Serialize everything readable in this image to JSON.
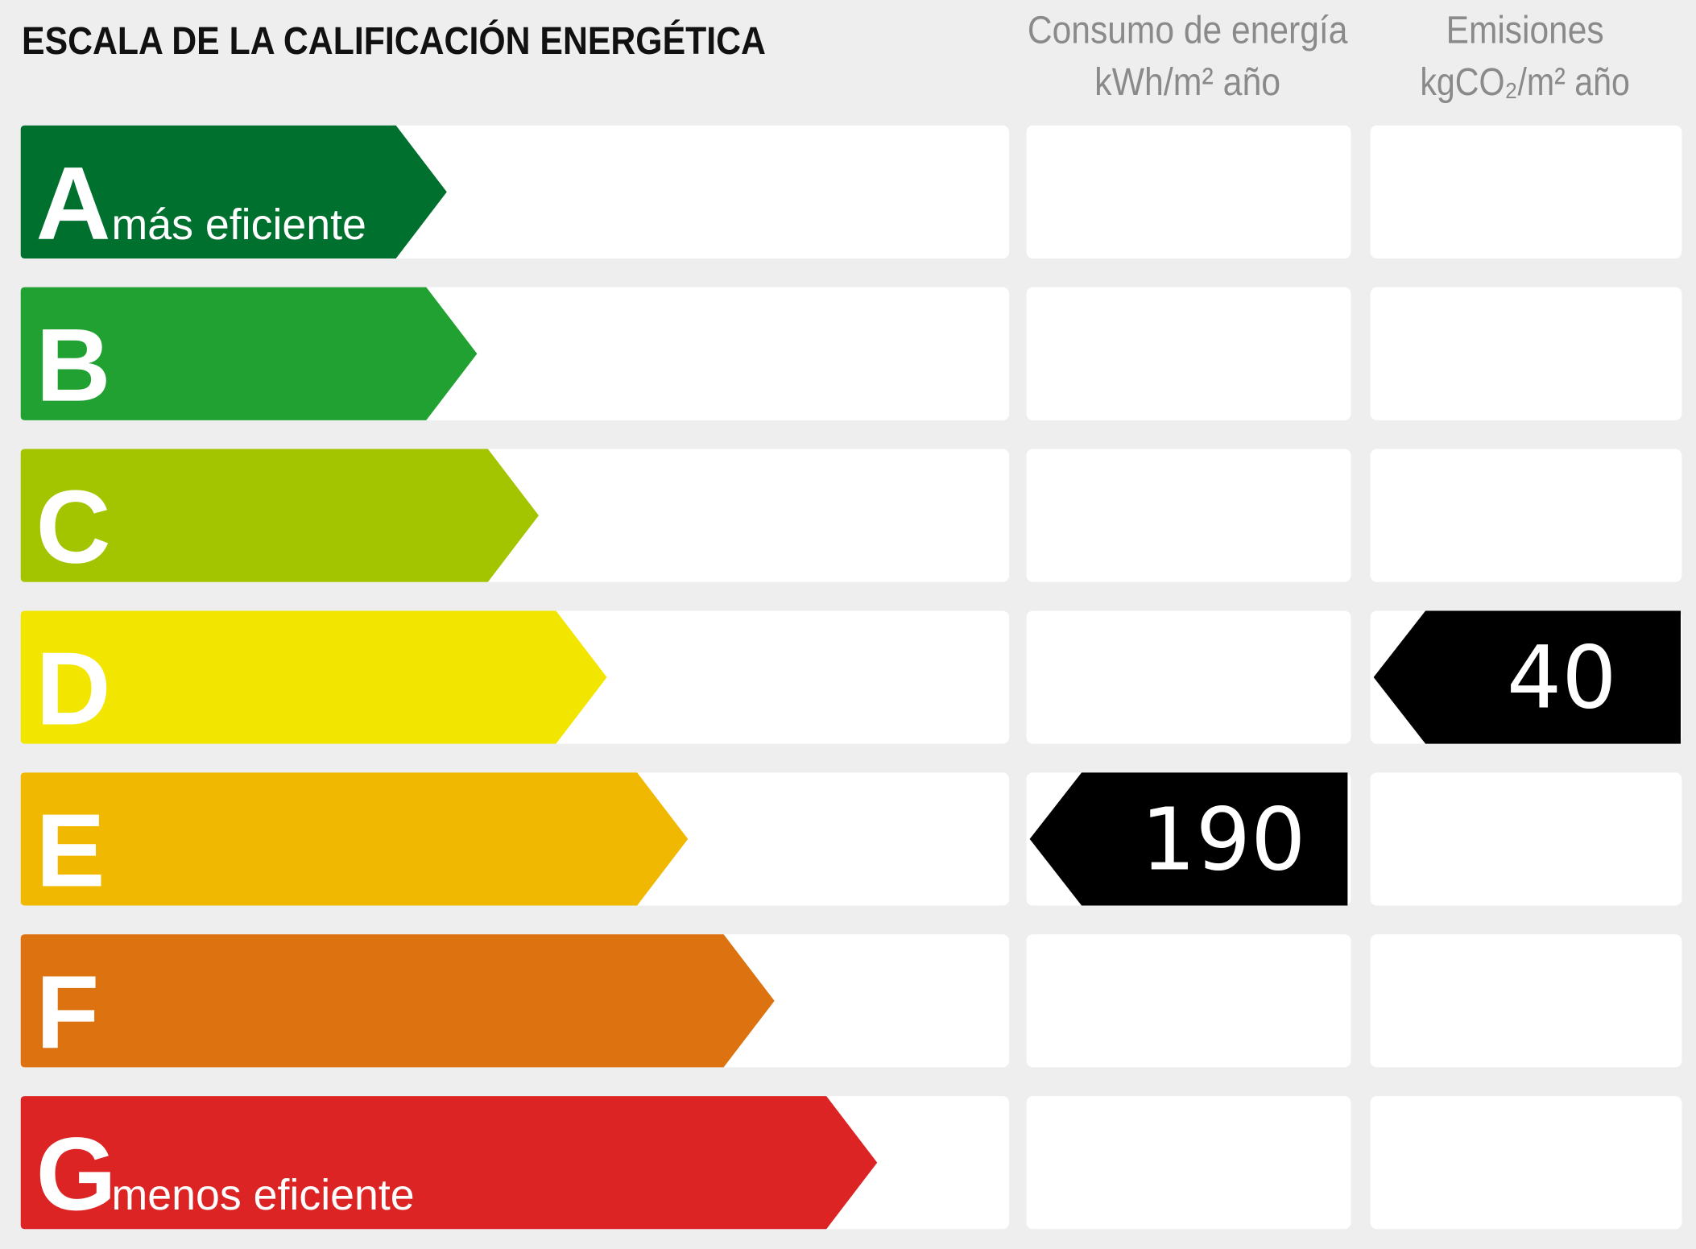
{
  "title": "ESCALA DE LA CALIFICACIÓN ENERGÉTICA",
  "columns": {
    "energy": {
      "title": "Consumo de energía",
      "unit": "kWh/m² año"
    },
    "emissions": {
      "title": "Emisiones",
      "unit": "kgCO₂/m² año"
    }
  },
  "rows": [
    {
      "letter": "A",
      "label": "más eficiente",
      "color": "#00702e"
    },
    {
      "letter": "B",
      "color": "#21a131"
    },
    {
      "letter": "C",
      "color": "#a3c500"
    },
    {
      "letter": "D",
      "color": "#f2e500",
      "emissions": 40
    },
    {
      "letter": "E",
      "color": "#f0b800",
      "energy": 190
    },
    {
      "letter": "F",
      "color": "#dc7210"
    },
    {
      "letter": "G",
      "label": "menos eficiente",
      "color": "#dc2424"
    }
  ]
}
